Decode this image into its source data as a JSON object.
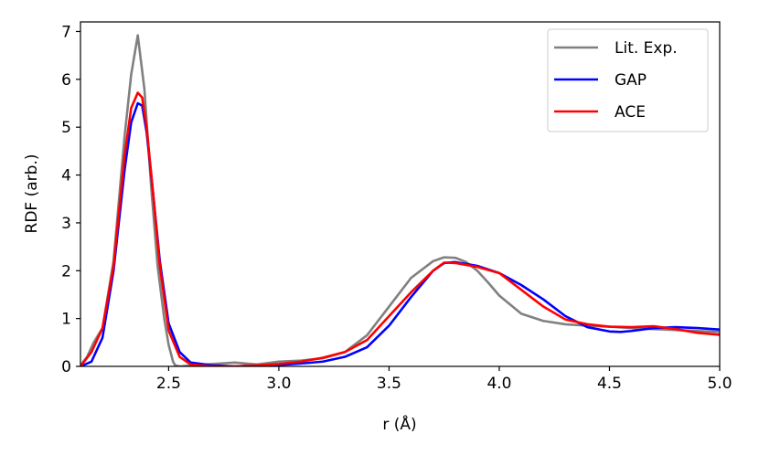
{
  "chart_data": {
    "type": "line",
    "xlabel": "r (Å)",
    "ylabel": "RDF (arb.)",
    "xlim": [
      2.1,
      5.0
    ],
    "ylim": [
      0,
      7.2
    ],
    "xticks": [
      "2.5",
      "3.0",
      "3.5",
      "4.0",
      "4.5",
      "5.0"
    ],
    "yticks": [
      "0",
      "1",
      "2",
      "3",
      "4",
      "5",
      "6",
      "7"
    ],
    "grid": false,
    "legend_position": "top-right",
    "series": [
      {
        "name": "Lit. Exp.",
        "color": "#808080",
        "x": [
          2.1,
          2.13,
          2.16,
          2.2,
          2.25,
          2.3,
          2.33,
          2.36,
          2.39,
          2.42,
          2.45,
          2.48,
          2.5,
          2.52,
          2.53,
          2.55,
          2.6,
          2.7,
          2.8,
          2.9,
          3.0,
          3.1,
          3.2,
          3.3,
          3.4,
          3.5,
          3.6,
          3.7,
          3.75,
          3.8,
          3.85,
          3.9,
          3.95,
          4.0,
          4.1,
          4.2,
          4.3,
          4.4,
          4.5,
          4.6,
          4.7,
          4.8,
          4.9,
          5.0
        ],
        "y": [
          0.02,
          0.2,
          0.5,
          0.8,
          2.2,
          4.8,
          6.1,
          6.92,
          5.8,
          3.8,
          2.1,
          1.0,
          0.45,
          0.1,
          0.02,
          0.0,
          0.02,
          0.05,
          0.08,
          0.04,
          0.1,
          0.12,
          0.17,
          0.3,
          0.65,
          1.25,
          1.85,
          2.2,
          2.28,
          2.27,
          2.18,
          2.0,
          1.75,
          1.48,
          1.1,
          0.95,
          0.88,
          0.85,
          0.83,
          0.8,
          0.78,
          0.76,
          0.74,
          0.72
        ]
      },
      {
        "name": "GAP",
        "color": "#0000ff",
        "x": [
          2.1,
          2.15,
          2.2,
          2.25,
          2.3,
          2.33,
          2.36,
          2.38,
          2.4,
          2.43,
          2.46,
          2.5,
          2.55,
          2.6,
          2.7,
          2.8,
          2.9,
          3.0,
          3.1,
          3.2,
          3.3,
          3.4,
          3.5,
          3.6,
          3.7,
          3.75,
          3.8,
          3.9,
          4.0,
          4.1,
          4.2,
          4.3,
          4.4,
          4.5,
          4.55,
          4.6,
          4.7,
          4.8,
          4.9,
          5.0
        ],
        "y": [
          0.0,
          0.1,
          0.6,
          2.0,
          4.1,
          5.1,
          5.5,
          5.45,
          4.9,
          3.6,
          2.2,
          0.9,
          0.3,
          0.08,
          0.02,
          0.0,
          0.02,
          0.03,
          0.06,
          0.1,
          0.2,
          0.4,
          0.85,
          1.45,
          2.0,
          2.16,
          2.18,
          2.1,
          1.95,
          1.7,
          1.4,
          1.05,
          0.82,
          0.73,
          0.72,
          0.74,
          0.8,
          0.82,
          0.8,
          0.77
        ]
      },
      {
        "name": "ACE",
        "color": "#ff0000",
        "x": [
          2.1,
          2.15,
          2.2,
          2.25,
          2.3,
          2.33,
          2.36,
          2.38,
          2.4,
          2.43,
          2.46,
          2.5,
          2.55,
          2.6,
          2.7,
          2.8,
          2.9,
          3.0,
          3.1,
          3.2,
          3.3,
          3.4,
          3.5,
          3.6,
          3.7,
          3.75,
          3.8,
          3.9,
          4.0,
          4.1,
          4.2,
          4.3,
          4.4,
          4.5,
          4.6,
          4.7,
          4.8,
          4.9,
          5.0
        ],
        "y": [
          0.0,
          0.3,
          0.8,
          2.1,
          4.4,
          5.4,
          5.72,
          5.62,
          5.0,
          3.6,
          2.1,
          0.75,
          0.2,
          0.04,
          0.0,
          0.0,
          0.02,
          0.05,
          0.1,
          0.18,
          0.3,
          0.55,
          1.05,
          1.55,
          2.0,
          2.17,
          2.16,
          2.08,
          1.95,
          1.6,
          1.25,
          0.98,
          0.88,
          0.83,
          0.82,
          0.84,
          0.78,
          0.7,
          0.66
        ]
      }
    ]
  }
}
